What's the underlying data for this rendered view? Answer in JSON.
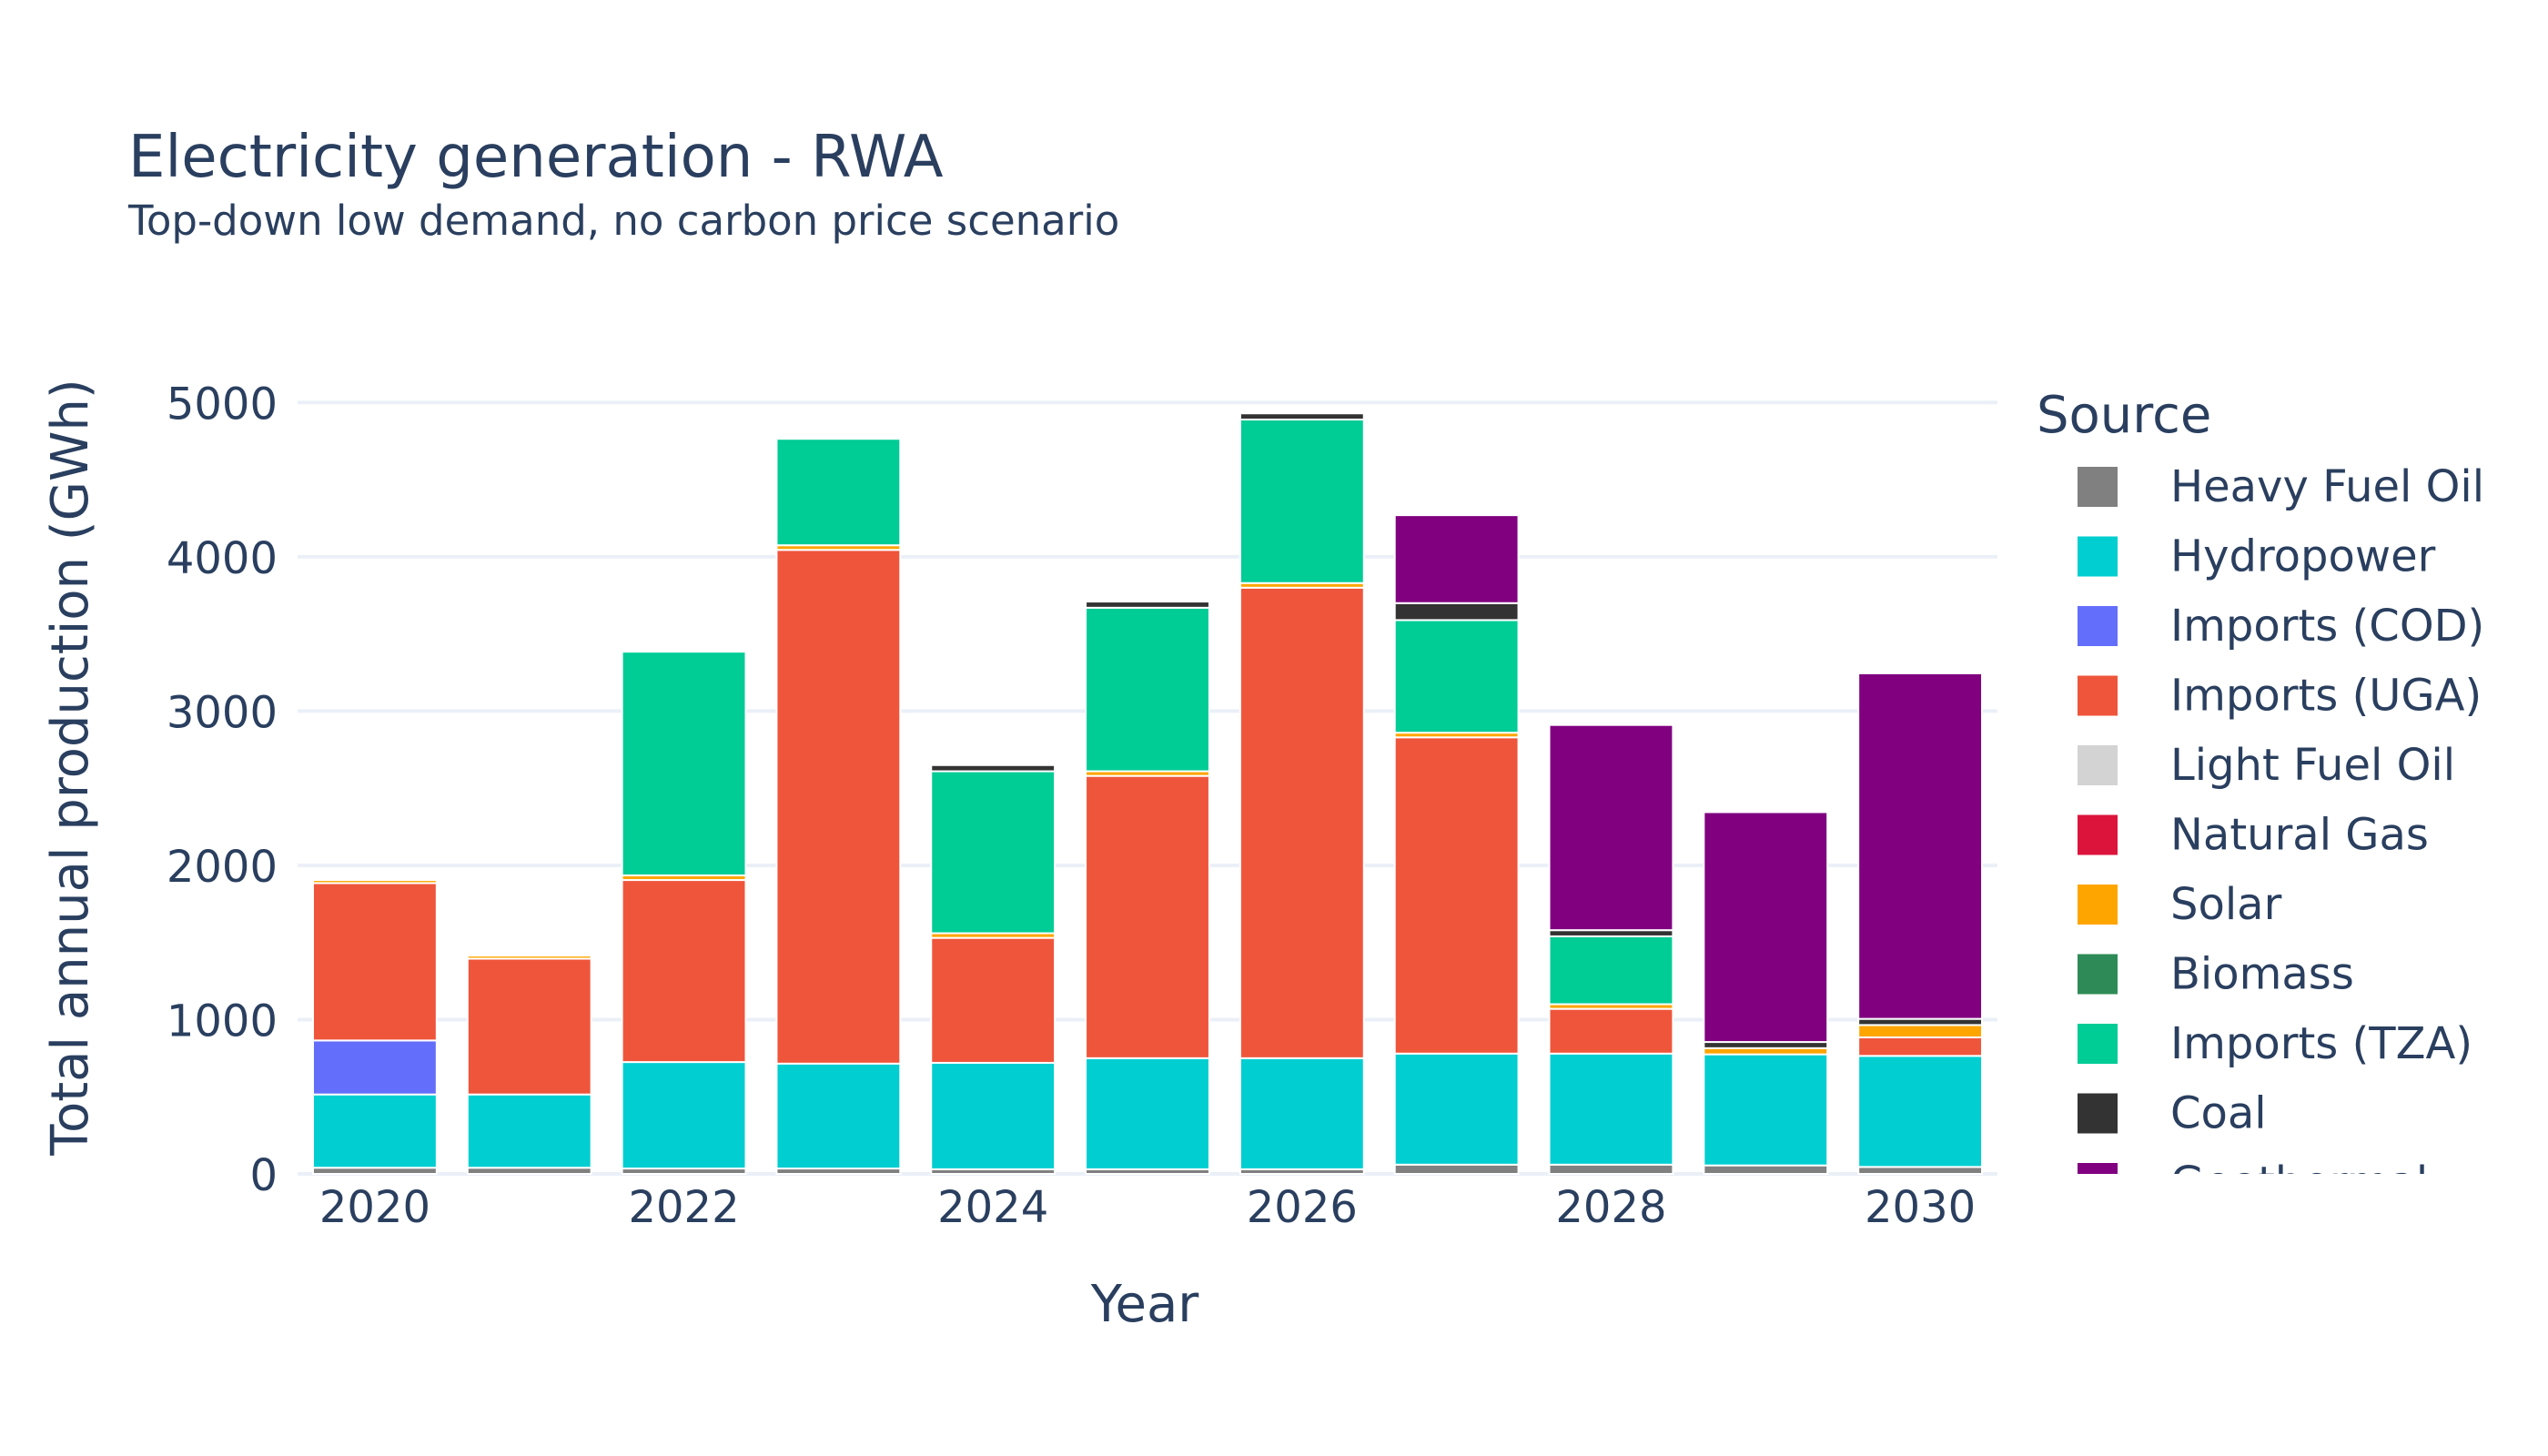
{
  "chart_data": {
    "type": "bar",
    "stacked": true,
    "title": "Electricity generation - RWA",
    "subtitle": "Top-down low demand, no carbon price scenario",
    "xlabel": "Year",
    "ylabel": "Total annual production (GWh)",
    "ylim": [
      0,
      5250
    ],
    "yticks": [
      0,
      1000,
      2000,
      3000,
      4000,
      5000
    ],
    "x": [
      2020,
      2021,
      2022,
      2023,
      2024,
      2025,
      2026,
      2027,
      2028,
      2029,
      2030
    ],
    "xticks": [
      2020,
      2022,
      2024,
      2026,
      2028,
      2030
    ],
    "grid": true,
    "legend_title": "Source",
    "legend_position": "right",
    "series": [
      {
        "name": "Heavy Fuel Oil",
        "color": "#808080",
        "values": [
          40,
          40,
          35,
          35,
          30,
          30,
          30,
          60,
          60,
          55,
          45
        ]
      },
      {
        "name": "Hydropower",
        "color": "#00CED1",
        "values": [
          475,
          475,
          690,
          680,
          690,
          720,
          720,
          720,
          720,
          720,
          720
        ]
      },
      {
        "name": "Imports (COD)",
        "color": "#636EFA",
        "values": [
          350,
          0,
          0,
          0,
          0,
          0,
          0,
          0,
          0,
          0,
          0
        ]
      },
      {
        "name": "Imports (UGA)",
        "color": "#EF553B",
        "values": [
          1020,
          880,
          1180,
          3330,
          810,
          1830,
          3050,
          2050,
          290,
          0,
          120
        ]
      },
      {
        "name": "Light Fuel Oil",
        "color": "#D3D3D3",
        "values": [
          0,
          0,
          0,
          0,
          0,
          0,
          0,
          0,
          0,
          0,
          0
        ]
      },
      {
        "name": "Natural Gas",
        "color": "#DC143C",
        "values": [
          0,
          0,
          0,
          0,
          0,
          0,
          0,
          0,
          0,
          0,
          0
        ]
      },
      {
        "name": "Solar",
        "color": "#FFA500",
        "values": [
          20,
          20,
          30,
          30,
          30,
          30,
          30,
          30,
          30,
          40,
          80
        ]
      },
      {
        "name": "Biomass",
        "color": "#2E8B57",
        "values": [
          0,
          0,
          0,
          0,
          0,
          0,
          0,
          0,
          0,
          0,
          0
        ]
      },
      {
        "name": "Imports (TZA)",
        "color": "#00CC96",
        "values": [
          0,
          0,
          1450,
          690,
          1050,
          1060,
          1060,
          730,
          440,
          0,
          0
        ]
      },
      {
        "name": "Coal",
        "color": "#333333",
        "values": [
          0,
          0,
          0,
          0,
          40,
          40,
          40,
          110,
          40,
          40,
          40
        ]
      },
      {
        "name": "Geothermal",
        "color": "#800080",
        "values": [
          0,
          0,
          0,
          0,
          0,
          0,
          0,
          570,
          1330,
          1490,
          2240
        ]
      }
    ]
  }
}
